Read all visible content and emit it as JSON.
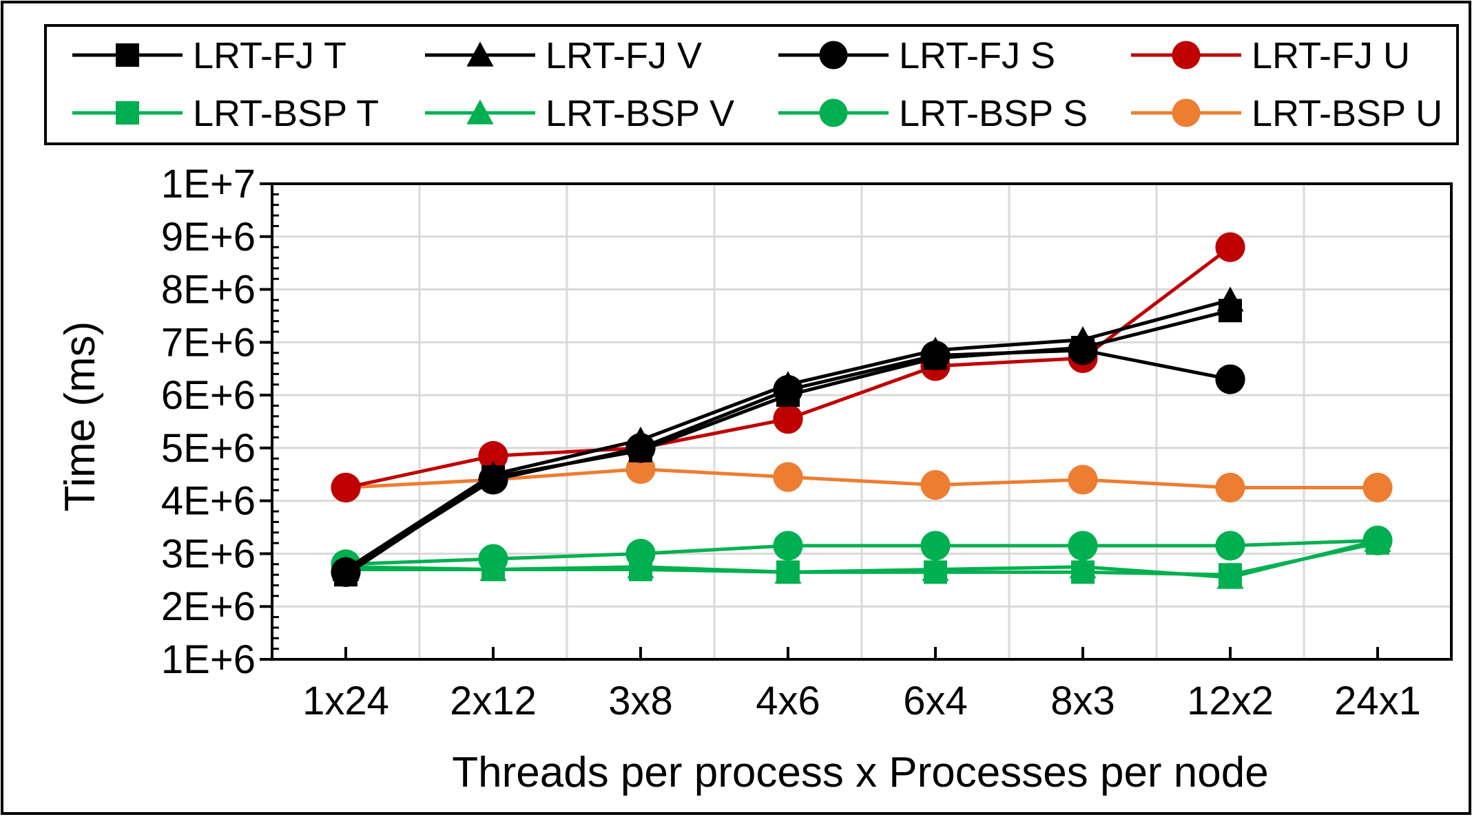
{
  "chart_data": {
    "type": "line",
    "categories": [
      "1x24",
      "2x12",
      "3x8",
      "4x6",
      "6x4",
      "8x3",
      "12x2",
      "24x1"
    ],
    "xlabel": "Threads per process x Processes per node",
    "ylabel": "Time (ms)",
    "ylim": [
      1000000,
      10000000
    ],
    "yticks": [
      1000000,
      2000000,
      3000000,
      4000000,
      5000000,
      6000000,
      7000000,
      8000000,
      9000000,
      10000000
    ],
    "ytick_labels": [
      "1E+6",
      "2E+6",
      "3E+6",
      "4E+6",
      "5E+6",
      "6E+6",
      "7E+6",
      "8E+6",
      "9E+6",
      "1E+7"
    ],
    "grid": true,
    "legend_position": "top",
    "series": [
      {
        "name": "LRT-FJ T",
        "marker": "square",
        "color": "#000000",
        "values": [
          2600000,
          4450000,
          4950000,
          6000000,
          6700000,
          6900000,
          7600000,
          null
        ]
      },
      {
        "name": "LRT-FJ V",
        "marker": "triangle",
        "color": "#000000",
        "values": [
          2700000,
          4500000,
          5150000,
          6200000,
          6850000,
          7050000,
          7800000,
          null
        ]
      },
      {
        "name": "LRT-FJ S",
        "marker": "circle",
        "color": "#000000",
        "values": [
          2650000,
          4400000,
          5000000,
          6100000,
          6750000,
          6850000,
          6300000,
          null
        ]
      },
      {
        "name": "LRT-FJ U",
        "marker": "circle",
        "color": "#c00000",
        "values": [
          4250000,
          4850000,
          5000000,
          5550000,
          6550000,
          6700000,
          8800000,
          null
        ]
      },
      {
        "name": "LRT-BSP T",
        "marker": "square",
        "color": "#00b050",
        "values": [
          2700000,
          2700000,
          2700000,
          2650000,
          2650000,
          2650000,
          2600000,
          3200000
        ]
      },
      {
        "name": "LRT-BSP V",
        "marker": "triangle",
        "color": "#00b050",
        "values": [
          2750000,
          2700000,
          2750000,
          2650000,
          2700000,
          2750000,
          2550000,
          3250000
        ]
      },
      {
        "name": "LRT-BSP S",
        "marker": "circle",
        "color": "#00b050",
        "values": [
          2800000,
          2900000,
          3000000,
          3150000,
          3150000,
          3150000,
          3150000,
          3250000
        ]
      },
      {
        "name": "LRT-BSP U",
        "marker": "circle",
        "color": "#ed7d31",
        "values": [
          4250000,
          4400000,
          4600000,
          4450000,
          4300000,
          4400000,
          4250000,
          4250000
        ]
      }
    ]
  }
}
